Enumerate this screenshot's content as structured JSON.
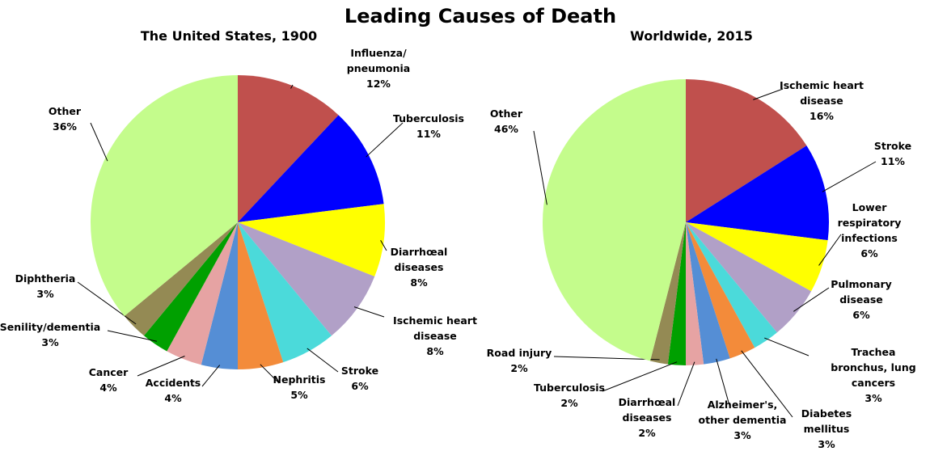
{
  "title": "Leading Causes of Death",
  "chart_data": [
    {
      "type": "pie",
      "title": "The United States, 1900",
      "categories": [
        "Influenza/\npneumonia",
        "Tuberculosis",
        "Diarrhœal\ndiseases",
        "Ischemic heart\ndisease",
        "Stroke",
        "Nephritis",
        "Accidents",
        "Cancer",
        "Senility/dementia",
        "Diphtheria",
        "Other"
      ],
      "values": [
        12,
        11,
        8,
        8,
        6,
        5,
        4,
        4,
        3,
        3,
        36
      ],
      "value_labels": [
        "12%",
        "11%",
        "8%",
        "8%",
        "6%",
        "5%",
        "4%",
        "4%",
        "3%",
        "3%",
        "36%"
      ],
      "colors": [
        "#c0504d",
        "#0000ff",
        "#ffff00",
        "#b1a0c7",
        "#4bdada",
        "#f38b3a",
        "#558ed5",
        "#e6a3a3",
        "#00a000",
        "#948a54",
        "#c4fc8c"
      ]
    },
    {
      "type": "pie",
      "title": "Worldwide, 2015",
      "categories": [
        "Ischemic heart\ndisease",
        "Stroke",
        "Lower\nrespiratory\ninfections",
        "Pulmonary\ndisease",
        "Trachea\nbronchus, lung\ncancers",
        "Diabetes\nmellitus",
        "Alzheimer's,\nother dementia",
        "Diarrhœal\ndiseases",
        "Tuberculosis",
        "Road injury",
        "Other"
      ],
      "values": [
        16,
        11,
        6,
        6,
        3,
        3,
        3,
        2,
        2,
        2,
        46
      ],
      "value_labels": [
        "16%",
        "11%",
        "6%",
        "6%",
        "3%",
        "3%",
        "3%",
        "2%",
        "2%",
        "2%",
        "46%"
      ],
      "colors": [
        "#c0504d",
        "#0000ff",
        "#ffff00",
        "#b1a0c7",
        "#4bdada",
        "#f38b3a",
        "#558ed5",
        "#e6a3a3",
        "#00a000",
        "#948a54",
        "#c4fc8c"
      ]
    }
  ]
}
